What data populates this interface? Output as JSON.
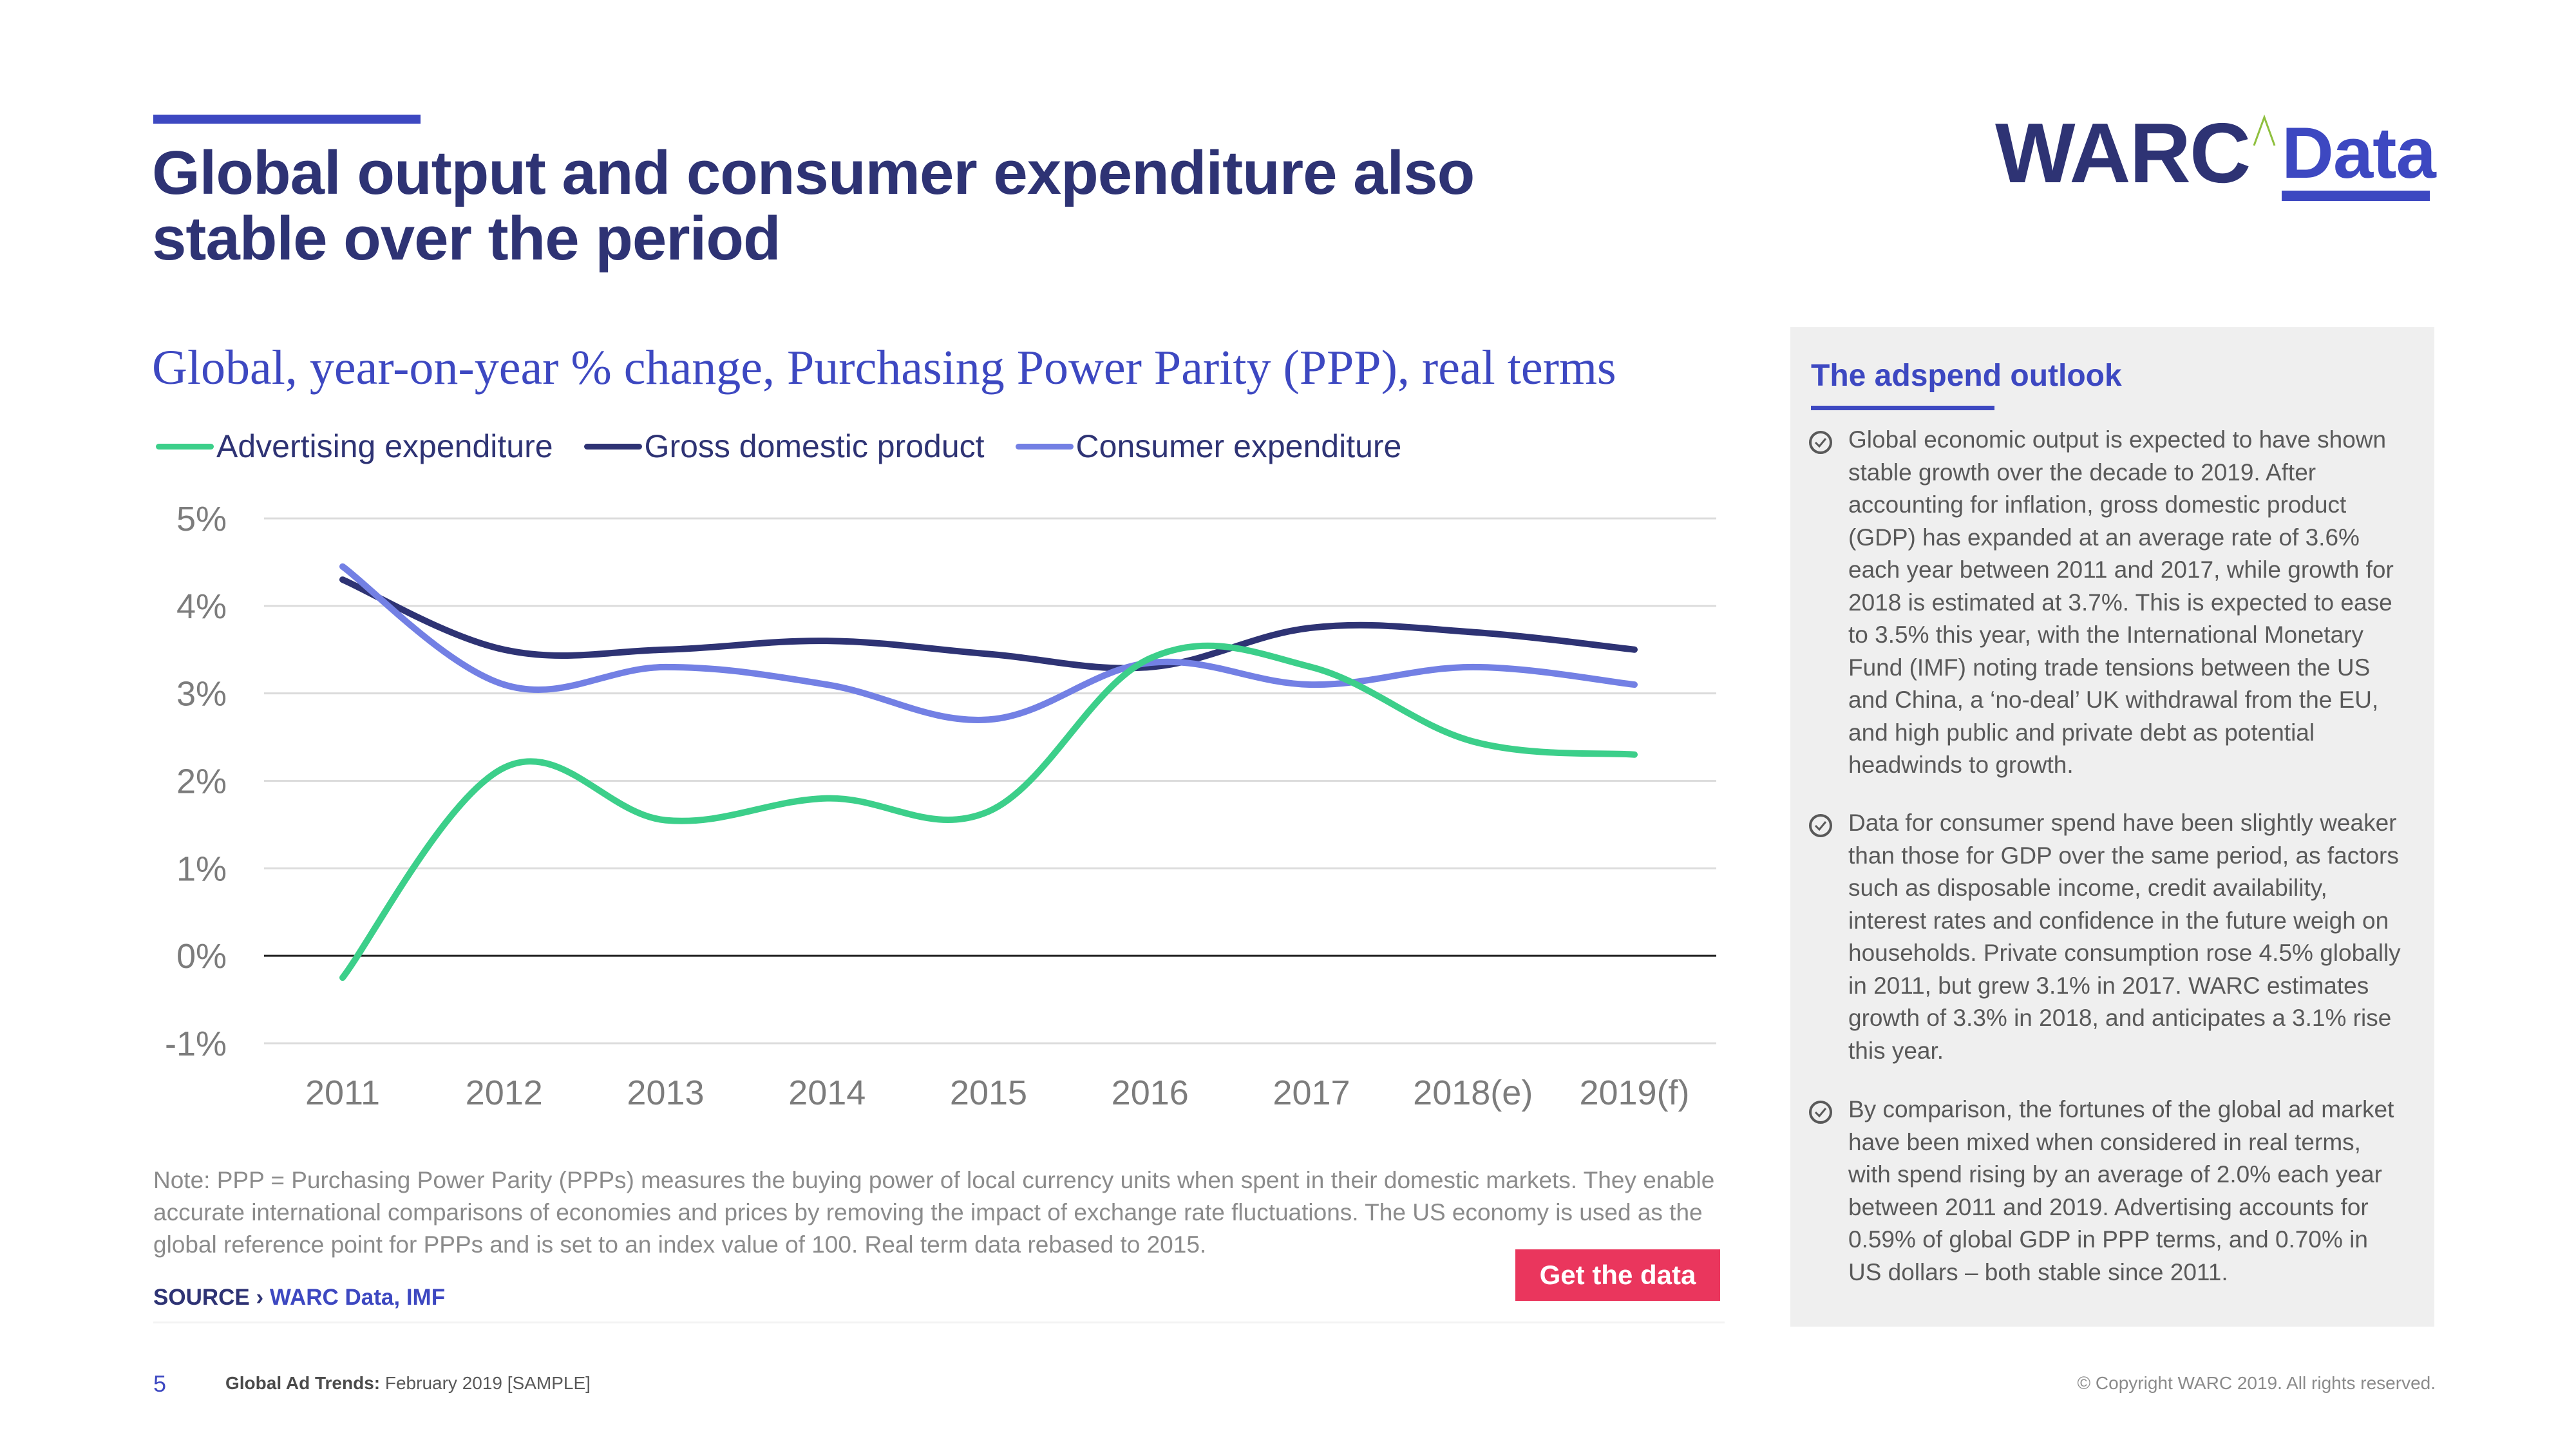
{
  "header": {
    "title": "Global output and consumer expenditure also stable over the period",
    "logo_main": "WARC",
    "logo_sub": "Data"
  },
  "colors": {
    "navy": "#2e3374",
    "accent_blue": "#3d48c1",
    "advertising": "#3ccf8a",
    "gdp": "#2e3374",
    "consumer": "#7380e4",
    "cta": "#ea365d",
    "panel_bg": "#efefef"
  },
  "chart_data": {
    "type": "line",
    "title": "Global, year-on-year % change, Purchasing Power Parity (PPP), real terms",
    "xlabel": "",
    "ylabel": "",
    "categories": [
      "2011",
      "2012",
      "2013",
      "2014",
      "2015",
      "2016",
      "2017",
      "2018(e)",
      "2019(f)"
    ],
    "y_ticks": [
      "5%",
      "4%",
      "3%",
      "2%",
      "1%",
      "0%",
      "-1%"
    ],
    "y_tick_values": [
      5,
      4,
      3,
      2,
      1,
      0,
      -1
    ],
    "ylim": [
      -1,
      5
    ],
    "grid": true,
    "smooth": true,
    "legend_position": "top-left",
    "series": [
      {
        "name": "Advertising expenditure",
        "color": "#3ccf8a",
        "values": [
          -0.25,
          2.15,
          1.55,
          1.8,
          1.65,
          3.4,
          3.3,
          2.45,
          2.3
        ]
      },
      {
        "name": "Gross domestic product",
        "color": "#2e3374",
        "values": [
          4.3,
          3.5,
          3.5,
          3.6,
          3.45,
          3.3,
          3.75,
          3.7,
          3.5
        ]
      },
      {
        "name": "Consumer expenditure",
        "color": "#7380e4",
        "values": [
          4.45,
          3.1,
          3.3,
          3.1,
          2.7,
          3.35,
          3.1,
          3.3,
          3.1
        ]
      }
    ]
  },
  "note": "Note: PPP = Purchasing Power Parity (PPPs) measures the buying power of local currency units when spent in their domestic markets. They enable accurate international comparisons of economies and prices by removing the impact of exchange rate fluctuations. The US economy is used as the global reference point for PPPs and is set to an index value of 100. Real term data rebased to 2015.",
  "source": {
    "label": "SOURCE › ",
    "value": "WARC Data, IMF"
  },
  "cta": {
    "label": "Get the data"
  },
  "panel": {
    "title": "The adspend outlook",
    "bullets": [
      {
        "icon": "check-circle-icon",
        "text": "Global economic output is expected to have shown stable growth over the decade to 2019. After accounting for inflation, gross domestic product (GDP) has expanded at an average rate of 3.6% each year between 2011 and 2017, while growth for 2018 is estimated at 3.7%. This is expected to ease to 3.5% this year, with the International Monetary Fund (IMF) noting trade tensions between the US and China, a ‘no-deal’ UK withdrawal from the EU, and high public and private debt as potential headwinds to growth."
      },
      {
        "icon": "check-circle-icon",
        "text": "Data for consumer spend have been slightly weaker than those for GDP over the same period, as factors such as disposable income, credit availability, interest rates and confidence in the future weigh on households. Private consumption rose 4.5% globally in 2011, but grew 3.1% in 2017. WARC estimates growth of 3.3% in 2018, and anticipates a 3.1% rise this year."
      },
      {
        "icon": "check-circle-icon",
        "text": "By comparison, the fortunes of the global ad market have been mixed when considered in real terms, with spend rising by an average of 2.0% each year between 2011 and 2019. Advertising accounts for 0.59% of global GDP in PPP terms, and 0.70% in US dollars – both stable since 2011."
      }
    ]
  },
  "footer": {
    "page_number": "5",
    "publication_bold": "Global Ad Trends:",
    "publication_rest": " February 2019 [SAMPLE]",
    "copyright": "© Copyright WARC 2019. All rights reserved."
  }
}
